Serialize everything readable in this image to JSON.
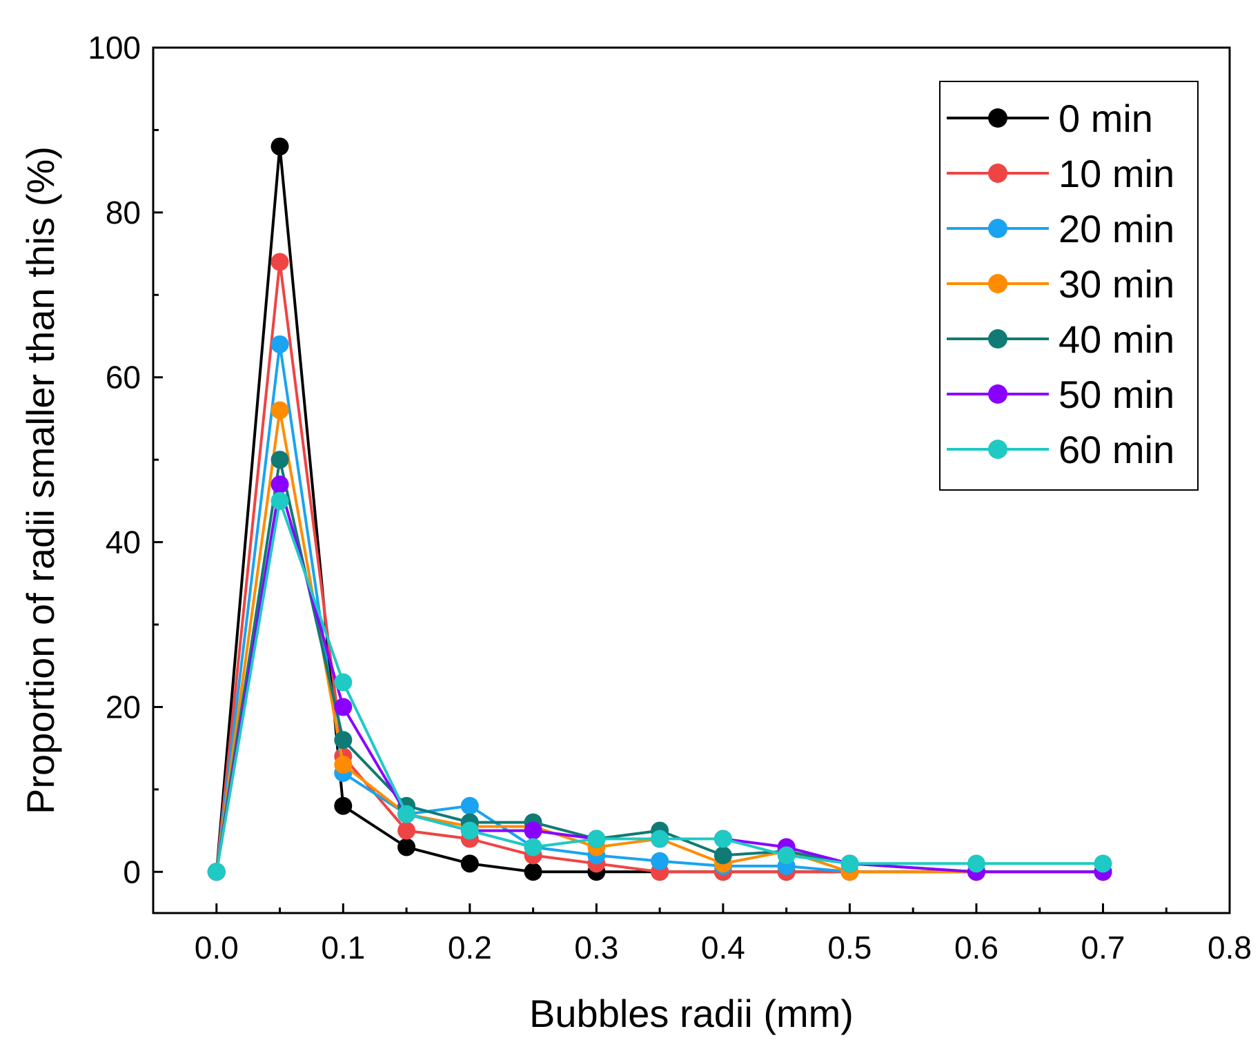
{
  "chart_data": {
    "type": "line",
    "title": "",
    "xlabel": "Bubbles radii (mm)",
    "ylabel": "Proportion of radii smaller than this (%)",
    "xlim": [
      -0.05,
      0.8
    ],
    "ylim": [
      -5,
      100
    ],
    "xticks": [
      0.0,
      0.1,
      0.2,
      0.3,
      0.4,
      0.5,
      0.6,
      0.7,
      0.8
    ],
    "xtick_labels": [
      "0.0",
      "0.1",
      "0.2",
      "0.3",
      "0.4",
      "0.5",
      "0.6",
      "0.7",
      "0.8"
    ],
    "yticks": [
      0,
      20,
      40,
      60,
      80,
      100
    ],
    "ytick_labels": [
      "0",
      "20",
      "40",
      "60",
      "80",
      "100"
    ],
    "grid": false,
    "legend_position": "top-right",
    "series": [
      {
        "name": "0 min",
        "color": "#000000",
        "x": [
          0,
          0.05,
          0.1,
          0.15,
          0.2,
          0.25,
          0.3,
          0.35,
          0.4,
          0.45,
          0.5,
          0.6,
          0.7
        ],
        "y": [
          0,
          88,
          8,
          3,
          1,
          0,
          0,
          0,
          0,
          0,
          0,
          0,
          0
        ]
      },
      {
        "name": "10 min",
        "color": "#ef4444",
        "x": [
          0,
          0.05,
          0.1,
          0.15,
          0.2,
          0.25,
          0.3,
          0.35,
          0.4,
          0.45,
          0.5,
          0.6,
          0.7
        ],
        "y": [
          0,
          74,
          14,
          5,
          4,
          2,
          1,
          0,
          0,
          0,
          0,
          0,
          0
        ]
      },
      {
        "name": "20 min",
        "color": "#1aa3f0",
        "x": [
          0,
          0.05,
          0.1,
          0.15,
          0.2,
          0.25,
          0.3,
          0.35,
          0.4,
          0.45,
          0.5,
          0.6,
          0.7
        ],
        "y": [
          0,
          64,
          12,
          7,
          8,
          3,
          2,
          1.3,
          0.7,
          0.7,
          0,
          0,
          0
        ]
      },
      {
        "name": "30 min",
        "color": "#ff8c00",
        "x": [
          0,
          0.05,
          0.1,
          0.15,
          0.2,
          0.25,
          0.3,
          0.35,
          0.4,
          0.45,
          0.5,
          0.6,
          0.7
        ],
        "y": [
          0,
          56,
          13,
          7,
          5.5,
          5.5,
          3,
          4,
          1,
          2.5,
          0,
          0,
          0
        ]
      },
      {
        "name": "40 min",
        "color": "#0f7b74",
        "x": [
          0,
          0.05,
          0.1,
          0.15,
          0.2,
          0.25,
          0.3,
          0.35,
          0.4,
          0.45,
          0.5,
          0.6,
          0.7
        ],
        "y": [
          0,
          50,
          16,
          8,
          6,
          6,
          4,
          5,
          2,
          2.5,
          1,
          0,
          0
        ]
      },
      {
        "name": "50 min",
        "color": "#8a00ff",
        "x": [
          0,
          0.05,
          0.1,
          0.15,
          0.2,
          0.25,
          0.3,
          0.35,
          0.4,
          0.45,
          0.5,
          0.6,
          0.7
        ],
        "y": [
          0,
          47,
          20,
          7,
          5,
          5,
          4,
          4,
          4,
          3,
          1,
          0,
          0
        ]
      },
      {
        "name": "60 min",
        "color": "#1fc9c4",
        "x": [
          0,
          0.05,
          0.1,
          0.15,
          0.2,
          0.25,
          0.3,
          0.35,
          0.4,
          0.45,
          0.5,
          0.6,
          0.7
        ],
        "y": [
          0,
          45,
          23,
          7,
          5,
          3,
          4,
          4,
          4,
          2,
          1,
          1,
          1
        ]
      }
    ]
  }
}
